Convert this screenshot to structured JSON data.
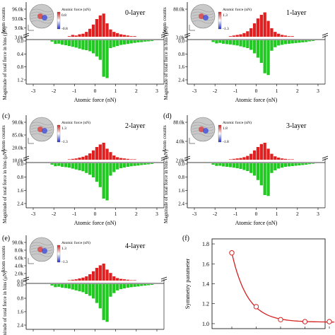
{
  "figure": {
    "accent_colors": {
      "counts_bar": "#e02020",
      "force_bar": "#22c922",
      "fit_line": "#d62020",
      "marker": "#d62020"
    },
    "panels": [
      {
        "panel_label": "",
        "layer_label": "0-layer",
        "count_ticks": [
          "96.0k",
          "93.0k",
          "9.0k",
          "3.0k"
        ],
        "force_ticks": [
          "0.0",
          "0.4",
          "0.8",
          "1.2"
        ],
        "force_axis_max": "1.6",
        "x_ticks": [
          "-3",
          "-2",
          "-1",
          "0",
          "1",
          "2",
          "3"
        ],
        "inset_title": "Atomic force (nN)",
        "inset_max": "0.8",
        "inset_min": "-0.8",
        "counts_ylabel": "Atom counts",
        "force_ylabel": "Magnitude of total force in bins (μN)",
        "xlabel": "Atomic force (nN)",
        "counts": [
          0,
          0,
          0,
          0,
          0,
          0,
          0,
          0,
          0,
          0,
          0,
          0,
          1,
          3,
          2,
          4,
          5,
          8,
          13,
          20,
          29,
          35,
          38,
          22,
          12,
          8,
          6,
          4,
          3,
          2,
          1,
          1,
          0,
          0,
          0,
          0,
          0,
          0,
          0,
          0
        ],
        "force": [
          0,
          0,
          0,
          0,
          0,
          0,
          0,
          0.05,
          0.14,
          0.13,
          0.17,
          0.19,
          0.22,
          0.25,
          0.28,
          0.32,
          0.36,
          0.38,
          0.42,
          0.5,
          0.62,
          0.75,
          1.4,
          1.45,
          0.3,
          0.26,
          0.22,
          0.18,
          0.16,
          0.14,
          0.12,
          0.1,
          0.08,
          0.07,
          0.05,
          0.04,
          0.03,
          0,
          0,
          0
        ]
      },
      {
        "panel_label": "",
        "layer_label": "1-layer",
        "count_ticks": [
          "80.0k",
          "3.0k"
        ],
        "force_ticks": [
          "0.0",
          "0.8",
          "1.6",
          "2.4"
        ],
        "force_axis_max": "2.4",
        "x_ticks": [
          "-3",
          "-2",
          "-1",
          "0",
          "1",
          "2",
          "3"
        ],
        "inset_title": "Atomic force (nN)",
        "inset_max": "1.3",
        "inset_min": "-1.3",
        "counts_ylabel": "Atom counts",
        "force_ylabel": "Magnitude of total force in bins (μN)",
        "xlabel": "Atomic force (nN)",
        "counts": [
          0,
          0,
          0,
          0,
          0,
          0,
          0,
          0,
          0,
          0,
          0,
          0,
          1,
          2,
          3,
          4,
          6,
          9,
          14,
          22,
          30,
          36,
          40,
          26,
          14,
          8,
          5,
          3,
          2,
          1,
          1,
          0,
          0,
          0,
          0,
          0,
          0,
          0,
          0,
          0
        ],
        "force": [
          0,
          0,
          0,
          0,
          0,
          0,
          0,
          0.1,
          0.18,
          0.15,
          0.2,
          0.22,
          0.24,
          0.27,
          0.3,
          0.35,
          0.4,
          0.45,
          0.55,
          0.75,
          1.0,
          1.3,
          1.9,
          2.0,
          0.6,
          0.4,
          0.3,
          0.26,
          0.22,
          0.2,
          0.18,
          0.16,
          0.14,
          0.12,
          0.1,
          0.06,
          0.04,
          0,
          0,
          0
        ]
      },
      {
        "panel_label": "(c)",
        "layer_label": "2-layer",
        "count_ticks": [
          "90.0k",
          "85.0k",
          "20.0k",
          "10.0k"
        ],
        "force_ticks": [
          "0.0",
          "0.8",
          "1.6",
          "2.4"
        ],
        "force_axis_max": "2.4",
        "x_ticks": [
          "-3",
          "-2",
          "-1",
          "0",
          "1",
          "2",
          "3"
        ],
        "inset_title": "Atomic force (nN)",
        "inset_max": "1.3",
        "inset_min": "-1.3",
        "counts_ylabel": "Atom counts",
        "force_ylabel": "Magnitude of total force in bins (μN)",
        "xlabel": "Atomic force (nN)",
        "counts": [
          0,
          0,
          0,
          0,
          0,
          0,
          0,
          0,
          0,
          0,
          0,
          0,
          1,
          2,
          3,
          5,
          7,
          10,
          15,
          22,
          30,
          36,
          40,
          26,
          18,
          10,
          6,
          4,
          3,
          2,
          1,
          1,
          0,
          0,
          0,
          0,
          0,
          0,
          0,
          0
        ],
        "force": [
          0,
          0,
          0,
          0,
          0,
          0,
          0,
          0.08,
          0.17,
          0.15,
          0.2,
          0.22,
          0.25,
          0.3,
          0.35,
          0.4,
          0.45,
          0.55,
          0.65,
          0.8,
          1.05,
          1.35,
          2.0,
          2.1,
          0.7,
          0.5,
          0.35,
          0.28,
          0.24,
          0.2,
          0.17,
          0.15,
          0.13,
          0.1,
          0.08,
          0.06,
          0.04,
          0,
          0,
          0
        ]
      },
      {
        "panel_label": "(d)",
        "layer_label": "3-layer",
        "count_ticks": [
          "88.0k",
          "4.0k",
          "2.0k"
        ],
        "force_ticks": [
          "0.0",
          "0.8",
          "1.6",
          "2.4"
        ],
        "force_axis_max": "2.4",
        "x_ticks": [
          "-3",
          "-2",
          "-1",
          "0",
          "1",
          "2",
          "3"
        ],
        "inset_title": "Atomic force (nN)",
        "inset_max": "1.8",
        "inset_min": "-1.8",
        "counts_ylabel": "Atom counts",
        "force_ylabel": "Magnitude of total force in bins (μN)",
        "xlabel": "Atomic force (nN)",
        "counts": [
          0,
          0,
          0,
          0,
          0,
          0,
          0,
          0,
          0,
          0,
          0,
          0,
          1,
          2,
          3,
          4,
          6,
          9,
          14,
          22,
          30,
          37,
          40,
          26,
          14,
          8,
          5,
          3,
          2,
          1,
          1,
          0,
          0,
          0,
          0,
          0,
          0,
          0,
          0,
          0
        ],
        "force": [
          0,
          0,
          0,
          0,
          0,
          0,
          0,
          0.08,
          0.15,
          0.14,
          0.18,
          0.2,
          0.22,
          0.25,
          0.28,
          0.32,
          0.38,
          0.44,
          0.55,
          0.7,
          0.95,
          1.25,
          1.8,
          1.85,
          0.55,
          0.4,
          0.3,
          0.25,
          0.2,
          0.18,
          0.16,
          0.14,
          0.12,
          0.1,
          0.08,
          0.05,
          0.03,
          0,
          0,
          0
        ]
      },
      {
        "panel_label": "(e)",
        "layer_label": "4-layer",
        "count_ticks": [
          "90.0k",
          "8.0k",
          "6.0k",
          "4.0k",
          "2.0k",
          "0.0"
        ],
        "force_ticks": [
          "0.0",
          "0.8",
          "1.6",
          "2.4"
        ],
        "force_axis_max": "2.4",
        "x_ticks": [
          "",
          "",
          "",
          "",
          "",
          "",
          ""
        ],
        "inset_title": "Atomic force (nN)",
        "inset_max": "1.3",
        "inset_min": "-1.3",
        "counts_ylabel": "Atom counts",
        "force_ylabel": "Magnitude of total force in bins (μN)",
        "xlabel": "",
        "counts": [
          0,
          0,
          0,
          0,
          0,
          0,
          0,
          0,
          0,
          0,
          0,
          0,
          1,
          2,
          3,
          5,
          7,
          10,
          15,
          22,
          30,
          36,
          40,
          26,
          18,
          10,
          6,
          4,
          3,
          2,
          1,
          1,
          0,
          0,
          0,
          0,
          0,
          0,
          0,
          0
        ],
        "force": [
          0,
          0,
          0,
          0,
          0,
          0,
          0,
          0.08,
          0.17,
          0.15,
          0.2,
          0.22,
          0.25,
          0.3,
          0.35,
          0.4,
          0.45,
          0.55,
          0.65,
          0.8,
          1.05,
          1.35,
          2.0,
          2.1,
          0.7,
          0.5,
          0.35,
          0.28,
          0.24,
          0.2,
          0.17,
          0.15,
          0.13,
          0.1,
          0.08,
          0.06,
          0.04,
          0,
          0,
          0
        ]
      }
    ]
  },
  "chart_data": [
    {
      "type": "bar",
      "panel": "0-layer",
      "xlabel": "Atomic force (nN)",
      "ylabel": "Atom counts",
      "ylabel_secondary": "Magnitude of total force in bins (μN)",
      "x_range": [
        -3,
        3
      ],
      "counts_ticks": [
        "3.0k",
        "9.0k",
        "93.0k",
        "96.0k"
      ],
      "force_ylim": [
        0,
        1.6
      ]
    },
    {
      "type": "bar",
      "panel": "1-layer",
      "xlabel": "Atomic force (nN)",
      "ylabel": "Atom counts",
      "ylabel_secondary": "Magnitude of total force in bins (μN)",
      "x_range": [
        -3,
        3
      ],
      "counts_ticks": [
        "3.0k",
        "80.0k"
      ],
      "force_ylim": [
        0,
        2.4
      ]
    },
    {
      "type": "bar",
      "panel": "2-layer",
      "xlabel": "Atomic force (nN)",
      "ylabel": "Atom counts",
      "ylabel_secondary": "Magnitude of total force in bins (μN)",
      "x_range": [
        -3,
        3
      ],
      "counts_ticks": [
        "10.0k",
        "20.0k",
        "85.0k",
        "90.0k"
      ],
      "force_ylim": [
        0,
        2.4
      ]
    },
    {
      "type": "bar",
      "panel": "3-layer",
      "xlabel": "Atomic force (nN)",
      "ylabel": "Atom counts",
      "ylabel_secondary": "Magnitude of total force in bins (μN)",
      "x_range": [
        -3,
        3
      ],
      "counts_ticks": [
        "2.0k",
        "4.0k",
        "88.0k"
      ],
      "force_ylim": [
        0,
        2.4
      ]
    },
    {
      "type": "bar",
      "panel": "4-layer",
      "ylabel": "Atom counts",
      "ylabel_secondary": "Magnitude of total force in bins (μN)",
      "counts_ticks": [
        "0.0",
        "2.0k",
        "4.0k",
        "6.0k",
        "8.0k",
        "90.0k"
      ],
      "force_ylim": [
        0,
        2.4
      ]
    },
    {
      "type": "scatter",
      "panel": "(f)",
      "ylabel": "Symmetry parameter",
      "y_ticks": [
        "1.0",
        "1.2",
        "1.4",
        "1.6",
        "1.8"
      ],
      "ylim": [
        0.95,
        1.85
      ],
      "x": [
        0,
        1,
        2,
        3,
        4
      ],
      "y": [
        1.71,
        1.17,
        1.04,
        1.02,
        1.02
      ],
      "fit_line": true
    }
  ],
  "panel_f": {
    "panel_label": "(f)",
    "ylabel": "Symmetry parameter",
    "y_ticks": [
      "1.0",
      "1.2",
      "1.4",
      "1.6",
      "1.8"
    ],
    "points": [
      {
        "x": 0,
        "y": 1.71
      },
      {
        "x": 1,
        "y": 1.17
      },
      {
        "x": 2,
        "y": 1.04
      },
      {
        "x": 3,
        "y": 1.02
      },
      {
        "x": 4,
        "y": 1.02
      }
    ]
  }
}
